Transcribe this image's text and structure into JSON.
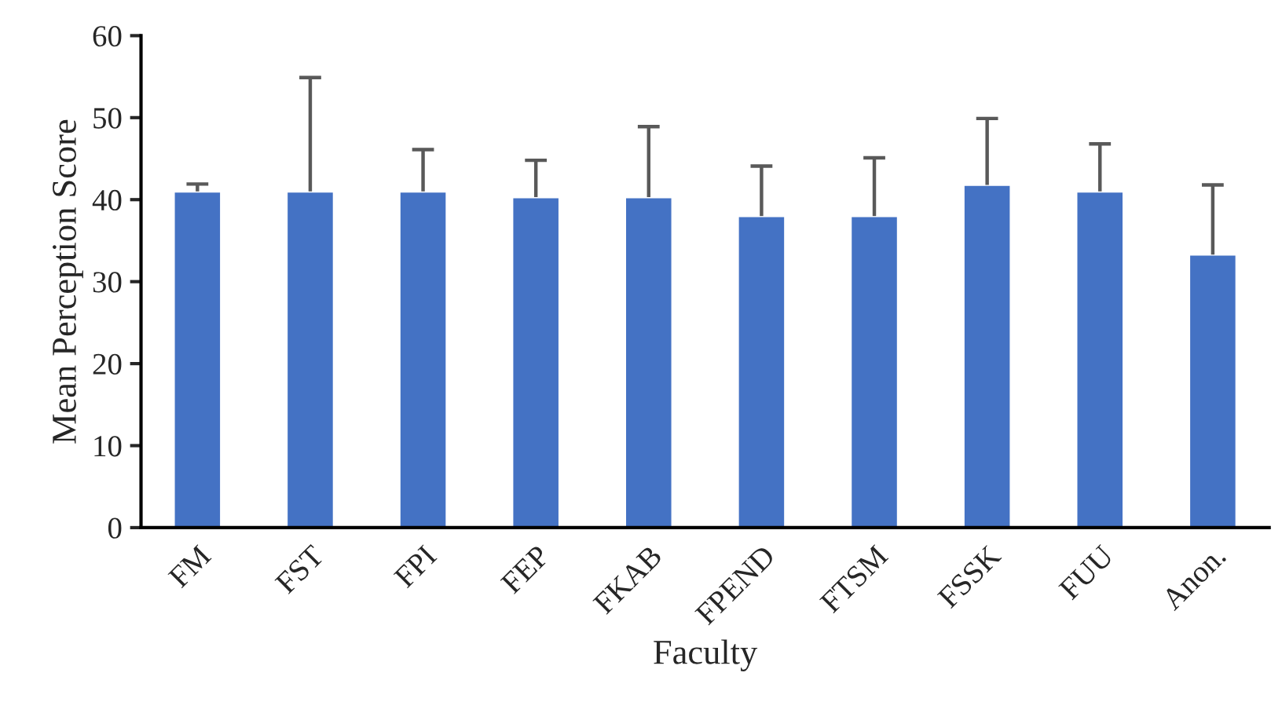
{
  "chart_data": {
    "type": "bar",
    "xlabel": "Faculty",
    "ylabel": "Mean Perception Score",
    "categories": [
      "FM",
      "FST",
      "FPI",
      "FEP",
      "FKAB",
      "FPEND",
      "FTSM",
      "FSSK",
      "FUU",
      "Anon."
    ],
    "values": [
      41.0,
      41.0,
      41.0,
      40.3,
      40.3,
      38.0,
      38.0,
      41.8,
      41.0,
      33.3
    ],
    "errors": [
      [
        41.0,
        41.9
      ],
      [
        41.0,
        54.9
      ],
      [
        41.0,
        46.1
      ],
      [
        40.3,
        44.8
      ],
      [
        40.3,
        48.9
      ],
      [
        38.0,
        44.1
      ],
      [
        38.0,
        45.1
      ],
      [
        41.8,
        49.9
      ],
      [
        41.0,
        46.8
      ],
      [
        33.3,
        41.8
      ]
    ],
    "color": "#4472c4",
    "ylim": [
      0,
      60
    ],
    "yticks": [
      0,
      10,
      20,
      30,
      40,
      50,
      60
    ],
    "grid": false,
    "legend": false
  }
}
